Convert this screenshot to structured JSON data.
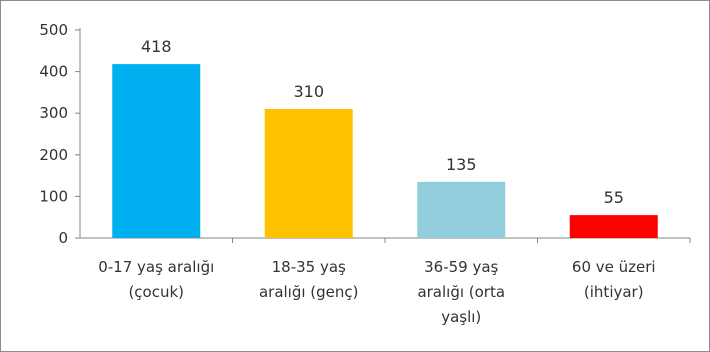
{
  "chart_data": {
    "type": "bar",
    "categories": [
      [
        "0-17 yaş aralığı",
        "(çocuk)"
      ],
      [
        "18-35 yaş",
        "aralığı (genç)"
      ],
      [
        "36-59 yaş",
        "aralığı (orta",
        "yaşlı)"
      ],
      [
        "60 ve üzeri",
        "(ihtiyar)"
      ]
    ],
    "values": [
      418,
      310,
      135,
      55
    ],
    "bar_colors": [
      "#00b0f0",
      "#ffc000",
      "#92cddc",
      "#ff0000"
    ],
    "yticks": [
      0,
      100,
      200,
      300,
      400,
      500
    ],
    "ylim": [
      0,
      500
    ],
    "grid": false,
    "legend": "none",
    "title": "",
    "xlabel": "",
    "ylabel": ""
  }
}
